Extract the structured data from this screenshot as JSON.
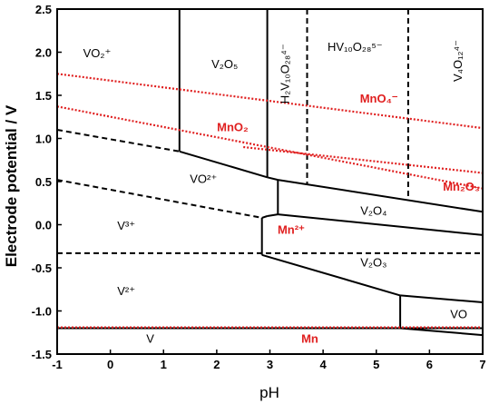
{
  "chart_data": {
    "type": "line",
    "xlabel": "pH",
    "ylabel": "Electrode potential / V",
    "xlim": [
      -1,
      7
    ],
    "ylim": [
      -1.5,
      2.5
    ],
    "xticks": [
      "-1",
      "0",
      "1",
      "2",
      "3",
      "4",
      "5",
      "6",
      "7"
    ],
    "yticks": [
      "-1.5",
      "-1.0",
      "-0.5",
      "0.0",
      "0.5",
      "1.0",
      "1.5",
      "2.0",
      "2.5"
    ],
    "colors": {
      "vanadium": "#000000",
      "manganese": "#e02020"
    },
    "boundaries": [
      {
        "group": "vanadium",
        "style": "solid",
        "points": [
          [
            1.3,
            2.5
          ],
          [
            1.3,
            0.85
          ]
        ]
      },
      {
        "group": "vanadium",
        "style": "solid",
        "points": [
          [
            1.3,
            0.85
          ],
          [
            2.95,
            0.55
          ]
        ]
      },
      {
        "group": "vanadium",
        "style": "solid",
        "points": [
          [
            2.95,
            2.5
          ],
          [
            2.95,
            0.55
          ]
        ]
      },
      {
        "group": "vanadium",
        "style": "solid",
        "points": [
          [
            2.95,
            0.55
          ],
          [
            3.15,
            0.52
          ]
        ]
      },
      {
        "group": "vanadium",
        "style": "solid",
        "points": [
          [
            3.15,
            0.52
          ],
          [
            7,
            0.15
          ]
        ]
      },
      {
        "group": "vanadium",
        "style": "solid",
        "points": [
          [
            3.15,
            0.52
          ],
          [
            3.15,
            0.12
          ]
        ]
      },
      {
        "group": "vanadium",
        "style": "solid",
        "points": [
          [
            3.15,
            0.12
          ],
          [
            7,
            -0.12
          ]
        ]
      },
      {
        "group": "vanadium",
        "style": "solid",
        "points": [
          [
            3.15,
            0.12
          ],
          [
            2.95,
            0.1
          ]
        ]
      },
      {
        "group": "vanadium",
        "style": "solid",
        "points": [
          [
            2.95,
            0.1
          ],
          [
            2.85,
            0.08
          ]
        ]
      },
      {
        "group": "vanadium",
        "style": "solid",
        "points": [
          [
            2.85,
            0.08
          ],
          [
            2.85,
            -0.35
          ]
        ]
      },
      {
        "group": "vanadium",
        "style": "solid",
        "points": [
          [
            2.85,
            -0.35
          ],
          [
            5.45,
            -0.82
          ]
        ]
      },
      {
        "group": "vanadium",
        "style": "solid",
        "points": [
          [
            5.45,
            -0.82
          ],
          [
            7,
            -0.9
          ]
        ]
      },
      {
        "group": "vanadium",
        "style": "solid",
        "points": [
          [
            5.45,
            -0.82
          ],
          [
            5.45,
            -1.2
          ]
        ]
      },
      {
        "group": "vanadium",
        "style": "solid",
        "points": [
          [
            5.45,
            -1.2
          ],
          [
            7,
            -1.28
          ]
        ]
      },
      {
        "group": "vanadium",
        "style": "solid",
        "points": [
          [
            -1,
            -1.2
          ],
          [
            7,
            -1.2
          ]
        ]
      },
      {
        "group": "vanadium",
        "style": "dashed",
        "points": [
          [
            -1,
            1.1
          ],
          [
            1.3,
            0.85
          ]
        ]
      },
      {
        "group": "vanadium",
        "style": "dashed",
        "points": [
          [
            -1,
            0.52
          ],
          [
            2.85,
            0.08
          ]
        ]
      },
      {
        "group": "vanadium",
        "style": "dashed",
        "points": [
          [
            -1,
            -0.33
          ],
          [
            7,
            -0.33
          ]
        ]
      },
      {
        "group": "vanadium",
        "style": "dashed",
        "points": [
          [
            3.7,
            2.5
          ],
          [
            3.7,
            0.46
          ]
        ]
      },
      {
        "group": "vanadium",
        "style": "dashed",
        "points": [
          [
            5.6,
            2.5
          ],
          [
            5.6,
            0.29
          ]
        ]
      },
      {
        "group": "manganese",
        "style": "dotted",
        "points": [
          [
            -1,
            1.75
          ],
          [
            7,
            1.12
          ]
        ]
      },
      {
        "group": "manganese",
        "style": "dotted",
        "points": [
          [
            -1,
            1.37
          ],
          [
            7,
            0.42
          ]
        ]
      },
      {
        "group": "manganese",
        "style": "dotted",
        "points": [
          [
            2.5,
            0.9
          ],
          [
            7,
            0.6
          ]
        ]
      },
      {
        "group": "manganese",
        "style": "dotted",
        "points": [
          [
            -1,
            -1.19
          ],
          [
            7,
            -1.19
          ]
        ]
      }
    ],
    "labels": [
      {
        "group": "vanadium",
        "text": "VO₂⁺",
        "x": -0.25,
        "y": 1.98
      },
      {
        "group": "vanadium",
        "text": "V₂O₅",
        "x": 2.15,
        "y": 1.85
      },
      {
        "group": "vanadium",
        "text": "H₂V₁₀O₂₈⁴⁻",
        "x": 3.3,
        "y": 1.75,
        "rotate": -90
      },
      {
        "group": "vanadium",
        "text": "HV₁₀O₂₈⁵⁻",
        "x": 4.6,
        "y": 2.05
      },
      {
        "group": "vanadium",
        "text": "V₄O₁₂⁴⁻",
        "x": 6.55,
        "y": 1.9,
        "rotate": -90
      },
      {
        "group": "vanadium",
        "text": "VO²⁺",
        "x": 1.75,
        "y": 0.52
      },
      {
        "group": "vanadium",
        "text": "V³⁺",
        "x": 0.3,
        "y": -0.02
      },
      {
        "group": "vanadium",
        "text": "V₂O₄",
        "x": 4.95,
        "y": 0.15
      },
      {
        "group": "vanadium",
        "text": "V₂O₃",
        "x": 4.95,
        "y": -0.45
      },
      {
        "group": "vanadium",
        "text": "V²⁺",
        "x": 0.3,
        "y": -0.78
      },
      {
        "group": "vanadium",
        "text": "VO",
        "x": 6.55,
        "y": -1.05
      },
      {
        "group": "vanadium",
        "text": "V",
        "x": 0.75,
        "y": -1.33
      },
      {
        "group": "manganese",
        "text": "MnO₄⁻",
        "x": 5.05,
        "y": 1.45
      },
      {
        "group": "manganese",
        "text": "MnO₂",
        "x": 2.3,
        "y": 1.12
      },
      {
        "group": "manganese",
        "text": "Mn²⁺",
        "x": 3.4,
        "y": -0.07
      },
      {
        "group": "manganese",
        "text": "Mn₂O₃",
        "x": 6.6,
        "y": 0.43
      },
      {
        "group": "manganese",
        "text": "Mn",
        "x": 3.75,
        "y": -1.33
      }
    ]
  }
}
